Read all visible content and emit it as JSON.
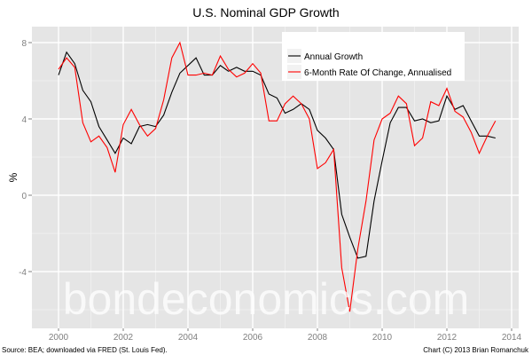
{
  "chart_data": {
    "type": "line",
    "title": "U.S. Nominal GDP Growth",
    "xlabel": "",
    "ylabel": "%",
    "xlim": [
      2000,
      2014
    ],
    "ylim": [
      -6.6,
      8.6
    ],
    "x_ticks": [
      "2000",
      "2002",
      "2004",
      "2006",
      "2008",
      "2010",
      "2012",
      "2014"
    ],
    "y_ticks": [
      "-4",
      "0",
      "4",
      "8"
    ],
    "grid": true,
    "legend_position": "top-right",
    "x_start": 2000.0,
    "x_step": 0.25,
    "series": [
      {
        "name": "Annual Growth",
        "color": "#000000",
        "values": [
          6.3,
          7.5,
          6.9,
          5.5,
          4.9,
          3.6,
          2.9,
          2.2,
          3.0,
          2.7,
          3.6,
          3.7,
          3.6,
          4.2,
          5.4,
          6.4,
          6.8,
          7.2,
          6.3,
          6.3,
          6.8,
          6.5,
          6.7,
          6.5,
          6.5,
          6.3,
          5.3,
          5.1,
          4.3,
          4.5,
          4.8,
          4.5,
          3.4,
          3.0,
          2.4,
          -1.0,
          -2.2,
          -3.3,
          -3.2,
          -0.3,
          1.8,
          3.8,
          4.6,
          4.6,
          3.9,
          4.0,
          3.8,
          3.9,
          5.2,
          4.5,
          4.7,
          3.9,
          3.1,
          3.1,
          3.0
        ]
      },
      {
        "name": "6-Month Rate Of Change, Annualised",
        "color": "#ff0000",
        "values": [
          6.6,
          7.2,
          6.7,
          3.8,
          2.8,
          3.1,
          2.5,
          1.2,
          3.7,
          4.5,
          3.7,
          3.1,
          3.5,
          5.0,
          7.2,
          8.0,
          6.3,
          6.3,
          6.4,
          6.3,
          7.3,
          6.6,
          6.2,
          6.4,
          6.9,
          6.4,
          3.9,
          3.9,
          4.8,
          5.2,
          4.8,
          4.0,
          1.4,
          1.7,
          2.4,
          -3.8,
          -6.1,
          -2.8,
          -0.3,
          2.9,
          4.0,
          4.3,
          5.2,
          4.8,
          2.6,
          3.0,
          4.9,
          4.7,
          5.6,
          4.4,
          4.1,
          3.3,
          2.2,
          3.1,
          3.9
        ]
      }
    ]
  },
  "watermark": "bondeconomics.com",
  "source_note": "Source: BEA; downloaded via FRED (St. Louis Fed).",
  "credit_note": "Chart (C) 2013 Brian Romanchuk"
}
